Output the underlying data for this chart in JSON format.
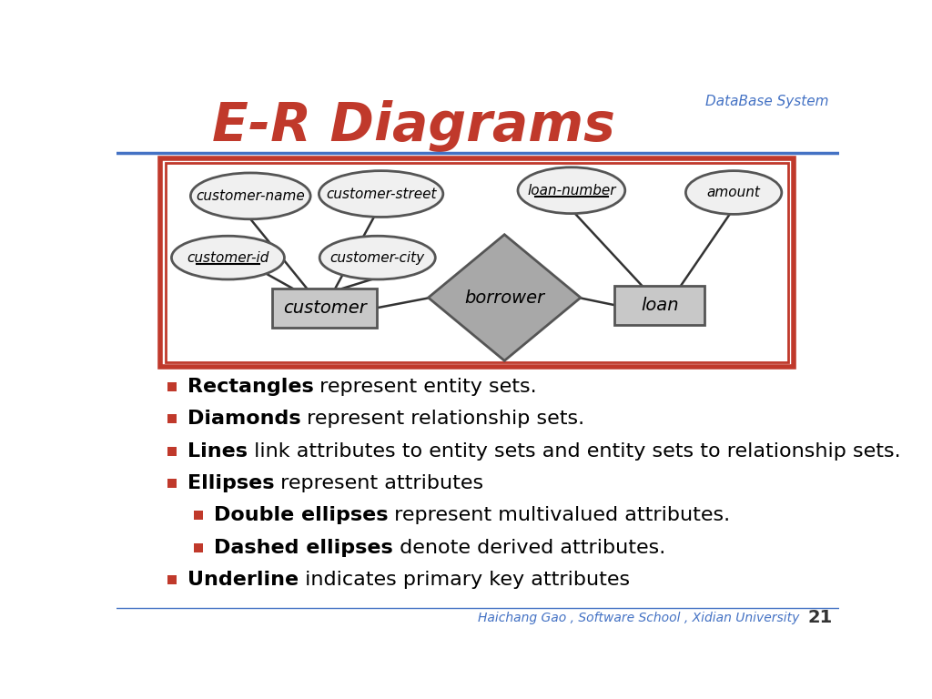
{
  "title": "E-R Diagrams",
  "title_color": "#C0392B",
  "bg_color": "#FFFFFF",
  "header_text": "DataBase System",
  "footer_text": "Haichang Gao , Software School , Xidian University",
  "page_num": "21",
  "entity_fill": "#C8C8C8",
  "entity_stroke": "#555555",
  "ellipse_fill": "#F0F0F0",
  "ellipse_stroke": "#555555",
  "diamond_fill": "#A8A8A8",
  "diamond_stroke": "#555555",
  "line_color": "#333333",
  "border_color": "#C0392B",
  "bullet_color": "#C0392B",
  "blue_line_color": "#4472C4",
  "footer_color": "#4472C4",
  "bullet_items": [
    {
      "bold": "Rectangles",
      "rest": " represent entity sets.",
      "indent": false
    },
    {
      "bold": "Diamonds",
      "rest": " represent relationship sets.",
      "indent": false
    },
    {
      "bold": "Lines",
      "rest": " link attributes to entity sets and entity sets to relationship sets.",
      "indent": false
    },
    {
      "bold": "Ellipses",
      "rest": " represent attributes",
      "indent": false
    },
    {
      "bold": "Double ellipses",
      "rest": " represent multivalued attributes.",
      "indent": true
    },
    {
      "bold": "Dashed ellipses",
      "rest": " denote derived attributes.",
      "indent": true
    },
    {
      "bold": "Underline",
      "rest": " indicates primary key attributes",
      "indent": false
    }
  ]
}
